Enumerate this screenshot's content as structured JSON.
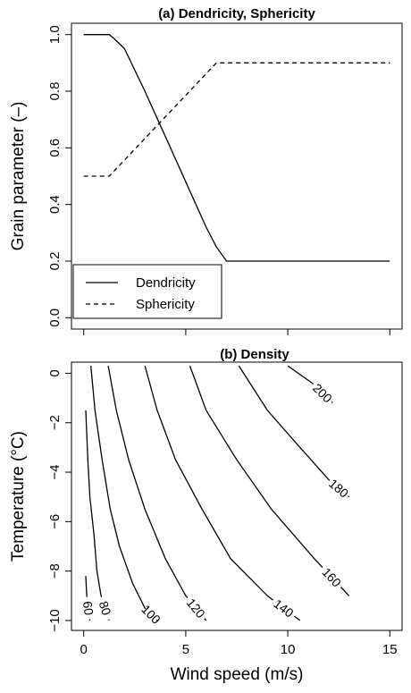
{
  "chart_data": [
    {
      "type": "line",
      "title": "(a) Dendricity, Sphericity",
      "xlabel": "",
      "ylabel": "Grain parameter (–)",
      "xlim": [
        0,
        15
      ],
      "ylim": [
        0,
        1
      ],
      "x_ticks": [
        0,
        5,
        10,
        15
      ],
      "y_ticks": [
        0.0,
        0.2,
        0.4,
        0.6,
        0.8,
        1.0
      ],
      "y_tick_labels": [
        "0.0",
        "0.2",
        "0.4",
        "0.6",
        "0.8",
        "1.0"
      ],
      "legend": "bottom-left",
      "grid": false,
      "series": [
        {
          "name": "Dendricity",
          "style": "solid",
          "x": [
            0,
            1.25,
            1.5,
            2.0,
            2.5,
            3.0,
            3.5,
            4.0,
            4.5,
            5.0,
            5.5,
            6.0,
            6.5,
            7.0,
            10.0,
            15.0
          ],
          "y": [
            1.0,
            1.0,
            0.985,
            0.95,
            0.875,
            0.8,
            0.72,
            0.64,
            0.56,
            0.48,
            0.4,
            0.32,
            0.25,
            0.2,
            0.2,
            0.2
          ]
        },
        {
          "name": "Sphericity",
          "style": "dashed",
          "x": [
            0,
            1.25,
            6.5,
            10.0,
            15.0
          ],
          "y": [
            0.5,
            0.5,
            0.9,
            0.9,
            0.9
          ]
        }
      ]
    },
    {
      "type": "contour",
      "title": "(b) Density",
      "xlabel": "Wind speed (m/s)",
      "ylabel": "Temperature (°C)",
      "xlim": [
        0,
        15
      ],
      "ylim": [
        -10,
        0
      ],
      "x_ticks": [
        0,
        5,
        10,
        15
      ],
      "y_ticks": [
        0,
        -2,
        -4,
        -6,
        -8,
        -10
      ],
      "grid": false,
      "levels": [
        {
          "label": "60",
          "points": [
            [
              0.1,
              -8.2
            ],
            [
              0.15,
              -9.0
            ],
            [
              0.3,
              -10.0
            ]
          ]
        },
        {
          "label": "80",
          "points": [
            [
              0.1,
              -1.5
            ],
            [
              0.2,
              -3.5
            ],
            [
              0.3,
              -5.0
            ],
            [
              0.5,
              -6.5
            ],
            [
              0.65,
              -8.0
            ],
            [
              0.85,
              -9.0
            ],
            [
              1.25,
              -10.0
            ]
          ]
        },
        {
          "label": "100",
          "points": [
            [
              0.35,
              0.3
            ],
            [
              0.55,
              -1.5
            ],
            [
              0.9,
              -3.5
            ],
            [
              1.3,
              -5.5
            ],
            [
              1.75,
              -7.0
            ],
            [
              2.4,
              -8.5
            ],
            [
              3.0,
              -9.5
            ],
            [
              3.6,
              -10.0
            ]
          ]
        },
        {
          "label": "120",
          "points": [
            [
              1.2,
              0.3
            ],
            [
              1.6,
              -1.5
            ],
            [
              2.2,
              -3.5
            ],
            [
              3.0,
              -5.5
            ],
            [
              4.0,
              -7.5
            ],
            [
              5.0,
              -9.0
            ],
            [
              6.0,
              -10.0
            ]
          ]
        },
        {
          "label": "140",
          "points": [
            [
              3.0,
              0.3
            ],
            [
              3.6,
              -1.5
            ],
            [
              4.5,
              -3.5
            ],
            [
              5.8,
              -5.5
            ],
            [
              7.2,
              -7.5
            ],
            [
              9.0,
              -9.0
            ],
            [
              10.6,
              -10.0
            ]
          ]
        },
        {
          "label": "160",
          "points": [
            [
              5.2,
              0.3
            ],
            [
              6.0,
              -1.5
            ],
            [
              7.5,
              -3.5
            ],
            [
              9.2,
              -5.5
            ],
            [
              11.3,
              -7.5
            ],
            [
              13.0,
              -9.0
            ]
          ]
        },
        {
          "label": "180",
          "points": [
            [
              7.6,
              0.3
            ],
            [
              9.0,
              -1.5
            ],
            [
              10.6,
              -3.0
            ],
            [
              12.0,
              -4.3
            ],
            [
              13.0,
              -5.0
            ]
          ]
        },
        {
          "label": "200",
          "points": [
            [
              10.0,
              0.3
            ],
            [
              11.2,
              -0.4
            ],
            [
              12.2,
              -1.2
            ]
          ]
        }
      ]
    }
  ]
}
